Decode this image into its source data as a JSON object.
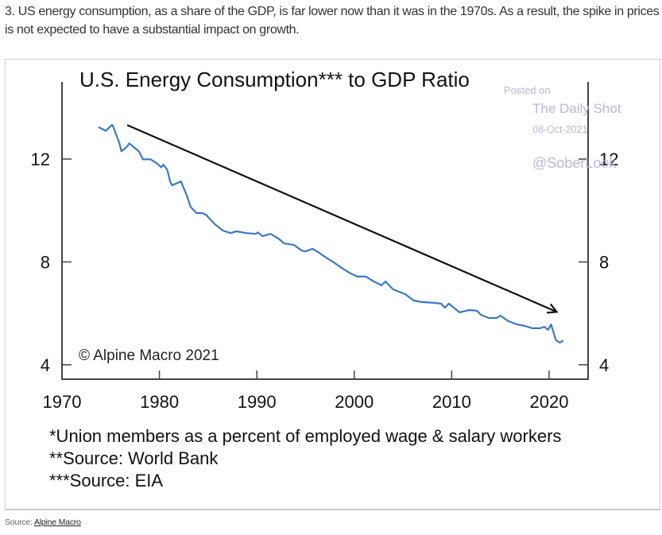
{
  "intro_text": "3. US energy consumption, as a share of the GDP, is far lower now than it was in the 1970s. As a result, the spike in prices is not expected to have a substantial impact on growth.",
  "source": {
    "label": "Source:",
    "link_text": "Alpine Macro"
  },
  "watermark": {
    "posted_on": "Posted on",
    "publisher": "The Daily Shot",
    "date": "08-Oct-2021",
    "handle": "@SoberLook"
  },
  "colors": {
    "series": "#3a78c9",
    "arrow": "#111111",
    "axis": "#444444",
    "watermark": "#b9b9d9"
  },
  "chart_data": {
    "type": "line",
    "title": "U.S. Energy Consumption*** to GDP Ratio",
    "xlabel": "",
    "ylabel": "",
    "xlim": [
      1970,
      2024
    ],
    "ylim": [
      3.44,
      15
    ],
    "x_ticks": [
      1970,
      1980,
      1990,
      2000,
      2010,
      2020
    ],
    "x_tick_labels": [
      "1970",
      "1980",
      "1990",
      "2000",
      "2010",
      "2020"
    ],
    "y_ticks": [
      4,
      8,
      12
    ],
    "y_tick_labels": [
      "4",
      "8",
      "12"
    ],
    "y_axes": [
      "left",
      "right"
    ],
    "grid": false,
    "legend": "none",
    "annotations": {
      "copyright": "© Alpine Macro 2021",
      "trend_arrow": {
        "from": [
          1976.7,
          13.32
        ],
        "to": [
          2020.7,
          6.07
        ]
      }
    },
    "footnotes": [
      "*Union members as a percent of employed wage & salary workers",
      "**Source: World Bank",
      "***Source: EIA"
    ],
    "series": [
      {
        "name": "Energy Consumption to GDP Ratio",
        "x": [
          1973.8,
          1974.5,
          1975.1,
          1975.2,
          1975.9,
          1976.1,
          1976.7,
          1976.9,
          1977.9,
          1978.3,
          1979.1,
          1979.7,
          1980.2,
          1980.4,
          1980.8,
          1981.1,
          1981.3,
          1982.2,
          1982.8,
          1983.2,
          1983.8,
          1984.4,
          1984.8,
          1985.7,
          1986.5,
          1987.3,
          1987.9,
          1988.9,
          1989.9,
          1990.1,
          1990.6,
          1991.4,
          1992.2,
          1992.8,
          1993.8,
          1994.6,
          1995.0,
          1995.7,
          1996.3,
          1997.1,
          1997.9,
          1998.7,
          1999.5,
          2000.3,
          2001.2,
          2002.0,
          2002.8,
          2003.2,
          2004.0,
          2005.2,
          2006.1,
          2006.9,
          2008.1,
          2008.9,
          2009.3,
          2009.7,
          2010.8,
          2011.8,
          2012.6,
          2013.0,
          2013.8,
          2014.6,
          2015.0,
          2015.8,
          2016.7,
          2017.5,
          2018.3,
          2019.1,
          2019.5,
          2019.9,
          2020.2,
          2020.5,
          2020.7,
          2021.1,
          2021.4
        ],
        "values": [
          13.23,
          13.1,
          13.32,
          13.32,
          12.61,
          12.3,
          12.49,
          12.61,
          12.3,
          11.99,
          11.99,
          11.84,
          11.68,
          11.78,
          11.59,
          11.13,
          10.98,
          11.13,
          10.6,
          10.14,
          9.9,
          9.9,
          9.83,
          9.46,
          9.22,
          9.12,
          9.19,
          9.12,
          9.09,
          9.15,
          9.0,
          9.09,
          8.91,
          8.72,
          8.66,
          8.44,
          8.41,
          8.51,
          8.38,
          8.17,
          7.98,
          7.77,
          7.58,
          7.43,
          7.43,
          7.24,
          7.09,
          7.24,
          6.93,
          6.75,
          6.5,
          6.44,
          6.41,
          6.38,
          6.22,
          6.38,
          6.04,
          6.13,
          6.1,
          5.94,
          5.82,
          5.82,
          5.91,
          5.7,
          5.57,
          5.51,
          5.42,
          5.42,
          5.48,
          5.36,
          5.57,
          5.2,
          4.96,
          4.86,
          4.93
        ]
      }
    ]
  }
}
